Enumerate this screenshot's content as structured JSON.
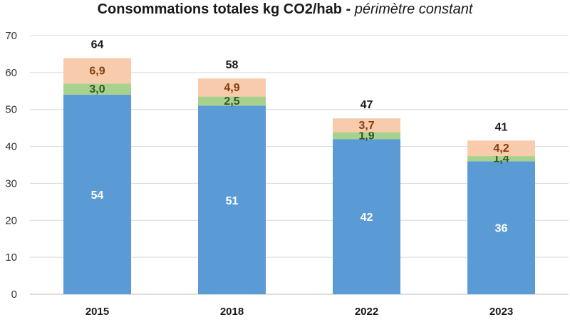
{
  "chart_data": {
    "type": "bar",
    "stacked": true,
    "title": "Consommations totales kg CO2/hab",
    "subtitle": "périmètre constant",
    "categories": [
      "2015",
      "2018",
      "2022",
      "2023"
    ],
    "ylim": [
      0,
      70
    ],
    "yticks": [
      0,
      10,
      20,
      30,
      40,
      50,
      60,
      70
    ],
    "grid": true,
    "series": [
      {
        "values": [
          54,
          51,
          42,
          36
        ],
        "labels": [
          "54",
          "51",
          "42",
          "36"
        ],
        "color": "#5b9bd5",
        "label_color": "#ffffff"
      },
      {
        "values": [
          3.0,
          2.5,
          1.9,
          1.4
        ],
        "labels": [
          "3,0",
          "2,5",
          "1,9",
          "1,4"
        ],
        "color": "#a9d18e",
        "label_color": "#375623"
      },
      {
        "values": [
          6.9,
          4.9,
          3.7,
          4.2
        ],
        "labels": [
          "6,9",
          "4,9",
          "3,7",
          "4,2"
        ],
        "color": "#f8cbad",
        "label_color": "#843c0c"
      }
    ],
    "totals": [
      "64",
      "58",
      "47",
      "41"
    ]
  }
}
